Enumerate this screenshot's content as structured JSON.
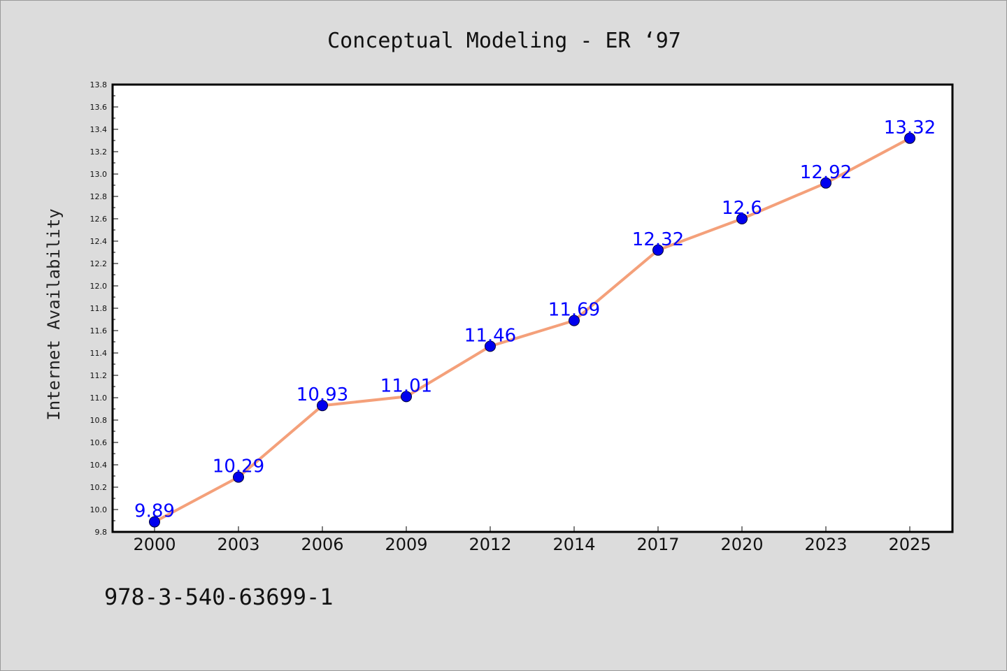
{
  "chart_data": {
    "type": "line",
    "title": "Conceptual Modeling - ER  ‘97",
    "xlabel": "",
    "ylabel": "Internet Availability",
    "categories": [
      "2000",
      "2003",
      "2006",
      "2009",
      "2012",
      "2014",
      "2017",
      "2020",
      "2023",
      "2025"
    ],
    "series": [
      {
        "values": [
          9.89,
          10.29,
          10.93,
          11.01,
          11.46,
          11.69,
          12.32,
          12.6,
          12.92,
          13.32
        ],
        "data_labels": [
          "9.89",
          "10.29",
          "10.93",
          "11.01",
          "11.46",
          "11.69",
          "12.32",
          "12.6",
          "12.92",
          "13.32"
        ]
      }
    ],
    "ylim": [
      9.8,
      13.8
    ],
    "yticks": [
      "9.8",
      "10.0",
      "10.2",
      "10.4",
      "10.6",
      "10.8",
      "11.0",
      "11.2",
      "11.4",
      "11.6",
      "11.8",
      "12.0",
      "12.2",
      "12.4",
      "12.6",
      "12.8",
      "13.0",
      "13.2",
      "13.4",
      "13.6",
      "13.8"
    ],
    "grid": false,
    "legend": "none",
    "colors": {
      "line": "#f4a07a",
      "marker": "#0000ee",
      "data_label": "#0000ff",
      "background": "#dcdcdc",
      "plot_background": "#ffffff"
    }
  },
  "footnote": "978-3-540-63699-1"
}
